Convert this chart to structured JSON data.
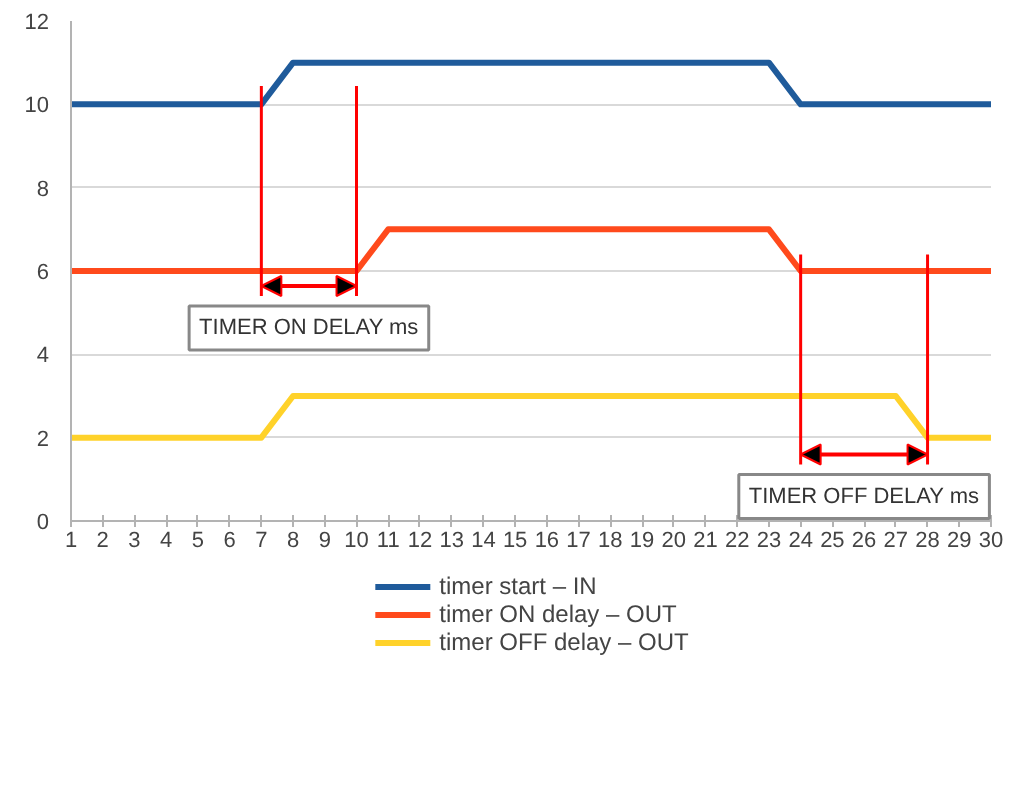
{
  "chart_data": {
    "type": "line",
    "x": [
      1,
      2,
      3,
      4,
      5,
      6,
      7,
      8,
      9,
      10,
      11,
      12,
      13,
      14,
      15,
      16,
      17,
      18,
      19,
      20,
      21,
      22,
      23,
      24,
      25,
      26,
      27,
      28,
      29,
      30
    ],
    "series": [
      {
        "name": "timer start – IN",
        "color": "#1f5b9b",
        "values": [
          10,
          10,
          10,
          10,
          10,
          10,
          10,
          11,
          11,
          11,
          11,
          11,
          11,
          11,
          11,
          11,
          11,
          11,
          11,
          11,
          11,
          11,
          11,
          10,
          10,
          10,
          10,
          10,
          10,
          10
        ]
      },
      {
        "name": "timer ON delay – OUT",
        "color": "#ff4a1c",
        "values": [
          6,
          6,
          6,
          6,
          6,
          6,
          6,
          6,
          6,
          6,
          7,
          7,
          7,
          7,
          7,
          7,
          7,
          7,
          7,
          7,
          7,
          7,
          7,
          6,
          6,
          6,
          6,
          6,
          6,
          6
        ]
      },
      {
        "name": "timer OFF delay – OUT",
        "color": "#ffd22a",
        "values": [
          2,
          2,
          2,
          2,
          2,
          2,
          2,
          3,
          3,
          3,
          3,
          3,
          3,
          3,
          3,
          3,
          3,
          3,
          3,
          3,
          3,
          3,
          3,
          3,
          3,
          3,
          3,
          2,
          2,
          2
        ]
      }
    ],
    "xlim": [
      1,
      30
    ],
    "xticks": [
      1,
      2,
      3,
      4,
      5,
      6,
      7,
      8,
      9,
      10,
      11,
      12,
      13,
      14,
      15,
      16,
      17,
      18,
      19,
      20,
      21,
      22,
      23,
      24,
      25,
      26,
      27,
      28,
      29,
      30
    ],
    "ylim": [
      0,
      12
    ],
    "yticks": [
      0,
      2,
      4,
      6,
      8,
      10,
      12
    ],
    "grid": "y",
    "legend": "bottom",
    "marker": "none",
    "line_style": "solid",
    "ref_lines": [
      {
        "axis": "x",
        "value": 7,
        "color": "#ff0000"
      },
      {
        "axis": "x",
        "value": 10,
        "color": "#ff0000"
      },
      {
        "axis": "x",
        "value": 24,
        "color": "#ff0000"
      },
      {
        "axis": "x",
        "value": 28,
        "color": "#ff0000"
      }
    ],
    "annotations": [
      "TIMER ON DELAY ms",
      "TIMER OFF DELAY ms"
    ]
  }
}
